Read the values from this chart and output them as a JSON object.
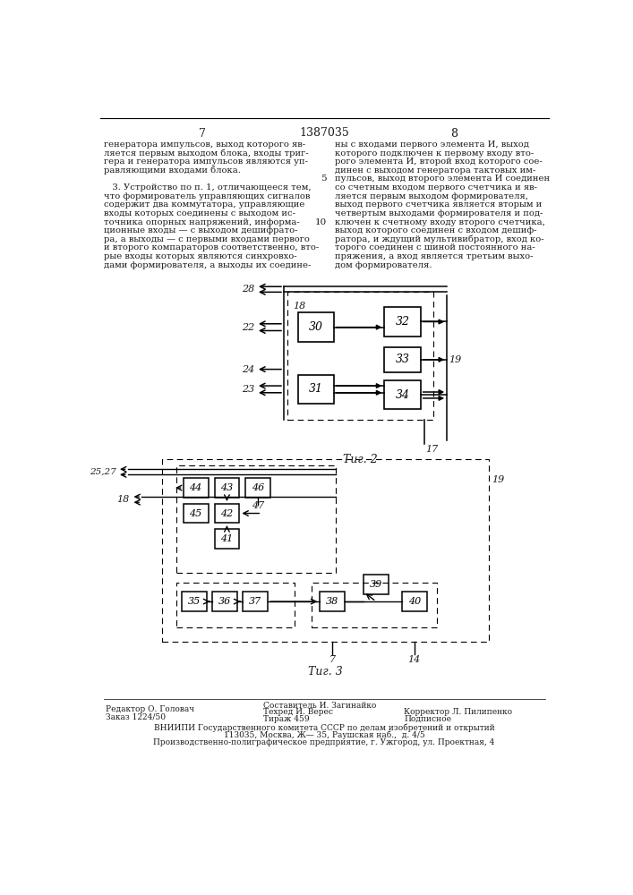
{
  "page_title": "1387035",
  "page_left": "7",
  "page_right": "8",
  "background_color": "#ffffff",
  "text_color": "#1a1a1a",
  "fig2_caption": "Τиг. 2",
  "fig3_caption": "Τиг. 3",
  "left_col_lines": [
    "генератора импульсов, выход которого яв-",
    "ляется первым выходом блока, входы триг-",
    "гера и генератора импульсов являются уп-",
    "равляющими входами блока.",
    "",
    "   3. Устройство по п. 1, отличающееся тем,",
    "что формирователь управляющих сигналов",
    "содержит два коммутатора, управляющие",
    "входы которых соединены с выходом ис-",
    "точника опорных напряжений, информа-",
    "ционные входы — с выходом дешифрато-",
    "ра, а выходы — с первыми входами первого",
    "и второго компараторов соответственно, вто-",
    "рые входы которых являются синхровхо-",
    "дами формирователя, а выходы их соедине-"
  ],
  "right_col_lines": [
    "ны с входами первого элемента И, выход",
    "которого подключен к первому входу вто-",
    "рого элемента И, второй вход которого сое-",
    "динен с выходом генератора тактовых им-",
    "пульсов, выход второго элемента И соединен",
    "со счетным входом первого счетчика и яв-",
    "ляется первым выходом формирователя,",
    "выход первого счетчика является вторым и",
    "четвертым выходами формирователя и под-",
    "ключен к счетному входу второго счетчика,",
    "выход которого соединен с входом дешиф-",
    "ратора, и ждущий мультивибратор, вход ко-",
    "торого соединен с шиной постоянного на-",
    "пряжения, а вход является третьим выхо-",
    "дом формирователя."
  ],
  "footer_editor": "Редактор О. Головач",
  "footer_order": "Заказ 1224/50",
  "footer_comp": "Составитель И. Загинайко",
  "footer_tech": "Техред И. Верес",
  "footer_print": "Тираж 459",
  "footer_corr": "Корректор Л. Пилипенко",
  "footer_sub": "Подписное",
  "footer_org1": "ВНИИПИ Государственного комитета СССР по делам изобретений и открытий",
  "footer_org2": "113035, Москва, Ж— 35, Раушская наб.,  д. 4/5",
  "footer_org3": "Производственно-полиграфическое предприятие, г. Ужгород, ул. Проектная, 4"
}
